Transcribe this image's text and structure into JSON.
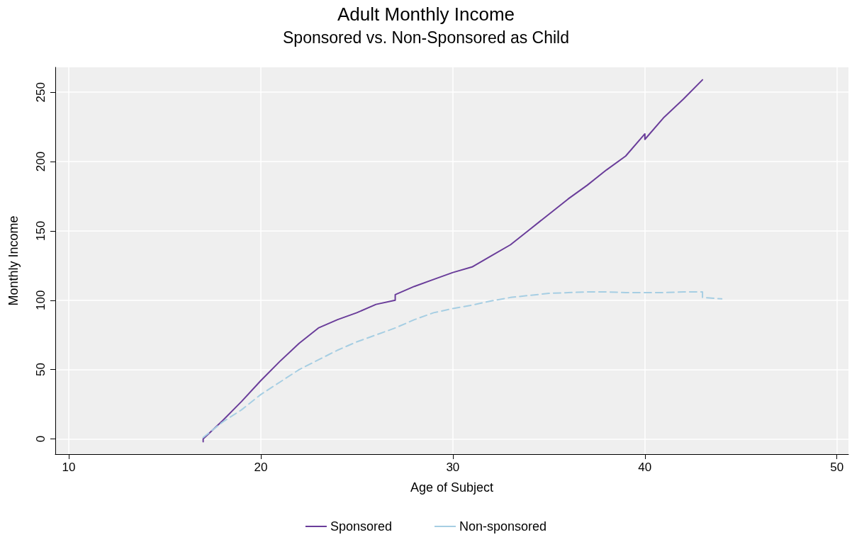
{
  "chart_data": {
    "type": "line",
    "title": "Adult Monthly Income",
    "subtitle": "Sponsored vs. Non-Sponsored as Child",
    "xlabel": "Age of Subject",
    "ylabel": "Monthly Income",
    "xlim": [
      9.3,
      50.6
    ],
    "xticks": [
      10,
      20,
      30,
      40,
      50
    ],
    "ylim": [
      -11,
      268
    ],
    "yticks": [
      0,
      50,
      100,
      150,
      200,
      250
    ],
    "grid": true,
    "legend": "bottom",
    "marker": "none",
    "series": [
      {
        "name": "Sponsored",
        "color": "#6a3d9a",
        "line_style": "solid",
        "x": [
          17,
          17,
          18,
          19,
          20,
          21,
          22,
          23,
          24,
          25,
          26,
          27,
          27,
          28,
          29,
          30,
          31,
          32,
          33,
          34,
          35,
          36,
          37,
          38,
          39,
          40,
          40,
          41,
          42,
          43
        ],
        "values": [
          -2,
          0,
          13,
          27,
          42,
          56,
          69,
          80,
          86,
          91,
          97,
          100,
          104,
          110,
          115,
          120,
          124,
          132,
          140,
          151,
          162,
          173,
          183,
          194,
          204,
          220,
          216,
          232,
          245,
          259
        ]
      },
      {
        "name": "Non-sponsored",
        "color": "#a6cee3",
        "line_style": "dashed",
        "x": [
          17,
          18,
          19,
          20,
          21,
          22,
          23,
          24,
          25,
          26,
          27,
          28,
          29,
          30,
          31,
          32,
          33,
          34,
          35,
          36,
          37,
          38,
          39,
          40,
          41,
          42,
          43,
          43,
          44
        ],
        "values": [
          1,
          12,
          21,
          32,
          41,
          50,
          57,
          64,
          70,
          75,
          80,
          86,
          91,
          94,
          96.5,
          99.5,
          102,
          103.5,
          105,
          105.5,
          106,
          106,
          105.5,
          105.5,
          105.5,
          106,
          106,
          102,
          101
        ]
      }
    ]
  }
}
